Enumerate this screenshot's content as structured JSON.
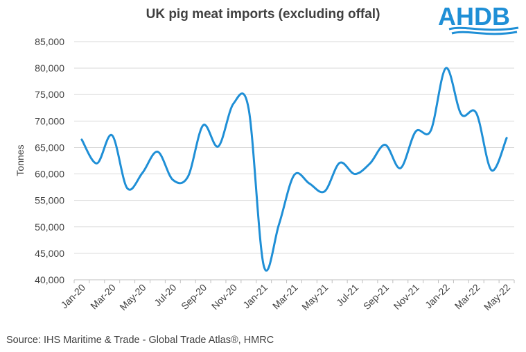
{
  "title": "UK pig meat imports (excluding offal)",
  "logo_text": "AHDB",
  "source": "Source: IHS Maritime & Trade - Global Trade Atlas®, HMRC",
  "colors": {
    "line": "#1f8fd6",
    "grid": "#d9d9d9",
    "axis": "#bfbfbf",
    "text": "#404040"
  },
  "chart_data": {
    "type": "line",
    "title": "UK pig meat imports (excluding offal)",
    "xlabel": "",
    "ylabel": "Tonnes",
    "ylim": [
      40000,
      85000
    ],
    "yticks": [
      40000,
      45000,
      50000,
      55000,
      60000,
      65000,
      70000,
      75000,
      80000,
      85000
    ],
    "ytick_labels": [
      "40,000",
      "45,000",
      "50,000",
      "55,000",
      "60,000",
      "65,000",
      "70,000",
      "75,000",
      "80,000",
      "85,000"
    ],
    "x": [
      "Jan-20",
      "Feb-20",
      "Mar-20",
      "Apr-20",
      "May-20",
      "Jun-20",
      "Jul-20",
      "Aug-20",
      "Sep-20",
      "Oct-20",
      "Nov-20",
      "Dec-20",
      "Jan-21",
      "Feb-21",
      "Mar-21",
      "Apr-21",
      "May-21",
      "Jun-21",
      "Jul-21",
      "Aug-21",
      "Sep-21",
      "Oct-21",
      "Nov-21",
      "Dec-21",
      "Jan-22",
      "Feb-22",
      "Mar-22",
      "Apr-22",
      "May-22"
    ],
    "xtick_labels": [
      "Jan-20",
      "Mar-20",
      "May-20",
      "Jul-20",
      "Sep-20",
      "Nov-20",
      "Jan-21",
      "Mar-21",
      "May-21",
      "Jul-21",
      "Sep-21",
      "Nov-21",
      "Jan-22",
      "Mar-22",
      "May-22"
    ],
    "grid": true,
    "legend": "none",
    "series": [
      {
        "values": [
          66500,
          62000,
          67300,
          57300,
          60200,
          64200,
          58900,
          59500,
          69200,
          65200,
          73300,
          72300,
          42600,
          50500,
          59800,
          58200,
          56700,
          62100,
          60000,
          62000,
          65500,
          61100,
          68000,
          68200,
          80000,
          71300,
          71500,
          60700,
          66800
        ]
      }
    ]
  }
}
